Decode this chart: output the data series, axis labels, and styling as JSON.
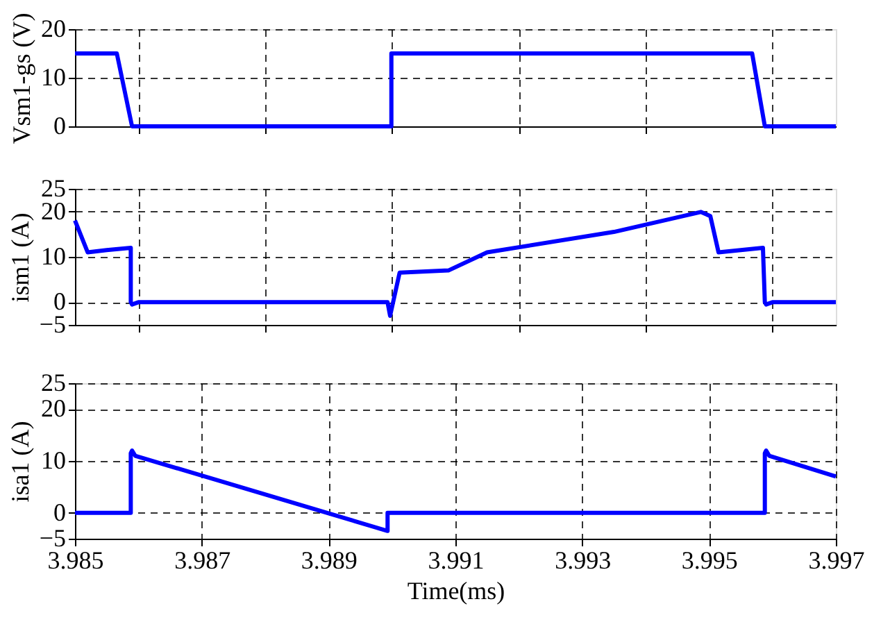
{
  "chart_data": [
    {
      "type": "line",
      "ylabel": "Vsm1-gs (V)",
      "xlim": [
        3.985,
        3.997
      ],
      "xticks": [
        3.986,
        3.988,
        3.99,
        3.992,
        3.994,
        3.996
      ],
      "ylim": [
        0,
        20
      ],
      "yticks": [
        0,
        10,
        20
      ],
      "grid": true,
      "tick_labels": "y",
      "line_style": "solid",
      "series": [
        {
          "color": "#0000ff",
          "x": [
            3.985,
            3.98566,
            3.9859,
            3.98999,
            3.98999,
            3.99568,
            3.99588,
            3.997
          ],
          "values": [
            15,
            15,
            0,
            0,
            15,
            15,
            0,
            0
          ]
        }
      ]
    },
    {
      "type": "line",
      "ylabel": "ism1 (A)",
      "xlim": [
        3.985,
        3.997
      ],
      "xticks": [
        3.986,
        3.988,
        3.99,
        3.992,
        3.994,
        3.996
      ],
      "ylim": [
        -5,
        25
      ],
      "yticks": [
        -5,
        0,
        10,
        20,
        25
      ],
      "grid": true,
      "tick_labels": "y",
      "line_style": "solid",
      "series": [
        {
          "color": "#0000ff",
          "x": [
            3.985,
            3.9852,
            3.9855,
            3.98588,
            3.98588,
            3.9859,
            3.986,
            3.98993,
            3.98997,
            3.99012,
            3.99089,
            3.9915,
            3.9935,
            3.99487,
            3.99502,
            3.99515,
            3.99585,
            3.99588,
            3.9959,
            3.996,
            3.997
          ],
          "values": [
            18,
            11,
            11.5,
            12,
            0,
            -0.5,
            0,
            0,
            -3,
            6.5,
            7,
            11,
            15.5,
            19.9,
            19,
            11,
            12,
            0,
            -0.5,
            0,
            0
          ]
        }
      ]
    },
    {
      "type": "line",
      "ylabel": "isa1 (A)",
      "xlabel": "Time(ms)",
      "xlim": [
        3.985,
        3.997
      ],
      "xticks": [
        3.985,
        3.987,
        3.989,
        3.991,
        3.993,
        3.995,
        3.997
      ],
      "ylim": [
        -5,
        25
      ],
      "yticks": [
        -5,
        0,
        10,
        20,
        25
      ],
      "grid": true,
      "line_style": "solid",
      "series": [
        {
          "color": "#0000ff",
          "x": [
            3.985,
            3.98588,
            3.98588,
            3.9859,
            3.98595,
            3.98993,
            3.98993,
            3.99588,
            3.99588,
            3.9959,
            3.99595,
            3.997
          ],
          "values": [
            0,
            0,
            11.5,
            12,
            11,
            -3.5,
            0,
            0,
            11.5,
            12,
            11,
            7
          ]
        }
      ]
    }
  ]
}
